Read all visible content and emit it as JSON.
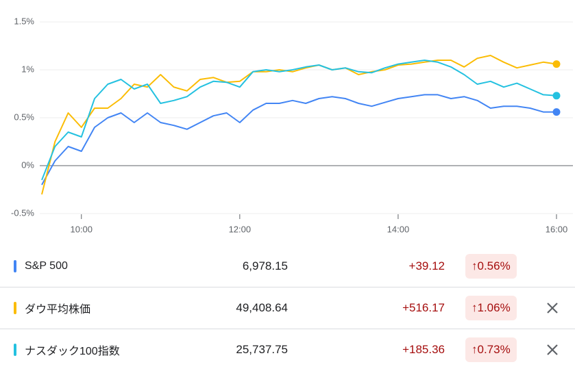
{
  "chart_data": {
    "type": "line",
    "x": [
      570,
      580,
      590,
      600,
      610,
      620,
      630,
      640,
      650,
      660,
      670,
      680,
      690,
      700,
      710,
      720,
      730,
      740,
      750,
      760,
      770,
      780,
      790,
      800,
      810,
      820,
      830,
      840,
      850,
      860,
      870,
      880,
      890,
      900,
      910,
      920,
      930,
      940,
      950,
      960
    ],
    "xlim": [
      570,
      960
    ],
    "xticks": [
      {
        "value": 600,
        "label": "10:00"
      },
      {
        "value": 720,
        "label": "12:00"
      },
      {
        "value": 840,
        "label": "14:00"
      },
      {
        "value": 960,
        "label": "16:00"
      }
    ],
    "ylim": [
      -0.5,
      1.5
    ],
    "yticks": [
      {
        "value": -0.5,
        "label": "-0.5%"
      },
      {
        "value": 0,
        "label": "0%"
      },
      {
        "value": 0.5,
        "label": "0.5%"
      },
      {
        "value": 1,
        "label": "1%"
      },
      {
        "value": 1.5,
        "label": "1.5%"
      }
    ],
    "grid": true,
    "series": [
      {
        "name": "S&P 500",
        "color": "#4285f4",
        "values": [
          -0.2,
          0.05,
          0.2,
          0.15,
          0.4,
          0.5,
          0.55,
          0.45,
          0.55,
          0.45,
          0.42,
          0.38,
          0.45,
          0.52,
          0.55,
          0.45,
          0.58,
          0.65,
          0.65,
          0.68,
          0.65,
          0.7,
          0.72,
          0.7,
          0.65,
          0.62,
          0.66,
          0.7,
          0.72,
          0.74,
          0.74,
          0.7,
          0.72,
          0.68,
          0.6,
          0.62,
          0.62,
          0.6,
          0.56,
          0.56
        ]
      },
      {
        "name": "ダウ平均株価",
        "color": "#fbbc04",
        "values": [
          -0.3,
          0.25,
          0.55,
          0.4,
          0.6,
          0.6,
          0.7,
          0.85,
          0.82,
          0.95,
          0.82,
          0.78,
          0.9,
          0.92,
          0.87,
          0.88,
          0.98,
          0.98,
          1.0,
          0.98,
          1.02,
          1.05,
          1.0,
          1.02,
          0.95,
          0.98,
          1.0,
          1.05,
          1.06,
          1.08,
          1.1,
          1.1,
          1.03,
          1.12,
          1.15,
          1.08,
          1.02,
          1.05,
          1.08,
          1.06
        ]
      },
      {
        "name": "ナスダック100指数",
        "color": "#24c1e0",
        "values": [
          -0.15,
          0.2,
          0.35,
          0.3,
          0.7,
          0.85,
          0.9,
          0.8,
          0.85,
          0.65,
          0.68,
          0.72,
          0.82,
          0.88,
          0.87,
          0.82,
          0.98,
          1.0,
          0.98,
          1.0,
          1.03,
          1.05,
          1.0,
          1.02,
          0.98,
          0.97,
          1.02,
          1.06,
          1.08,
          1.1,
          1.08,
          1.03,
          0.95,
          0.85,
          0.88,
          0.82,
          0.86,
          0.8,
          0.74,
          0.73
        ]
      }
    ]
  },
  "table": {
    "rows": [
      {
        "price": "6,978.15",
        "change": "+39.12",
        "percent": "0.56%",
        "removable": false
      },
      {
        "price": "49,408.64",
        "change": "+516.17",
        "percent": "1.06%",
        "removable": true
      },
      {
        "price": "25,737.75",
        "change": "+185.36",
        "percent": "0.73%",
        "removable": true
      }
    ]
  }
}
